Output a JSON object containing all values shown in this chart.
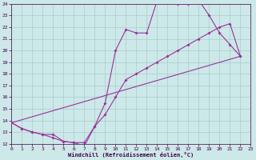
{
  "bg_color": "#cce8e8",
  "grid_color": "#aacccc",
  "line_color": "#993399",
  "xlabel": "Windchill (Refroidissement éolien,°C)",
  "xlim": [
    0,
    23
  ],
  "ylim": [
    12,
    24
  ],
  "xticks": [
    0,
    1,
    2,
    3,
    4,
    5,
    6,
    7,
    8,
    9,
    10,
    11,
    12,
    13,
    14,
    15,
    16,
    17,
    18,
    19,
    20,
    21,
    22,
    23
  ],
  "yticks": [
    12,
    13,
    14,
    15,
    16,
    17,
    18,
    19,
    20,
    21,
    22,
    23,
    24
  ],
  "curve1_x": [
    0,
    1,
    2,
    3,
    4,
    5,
    6,
    7,
    8,
    9,
    10,
    11,
    12,
    13,
    14,
    15,
    16,
    17,
    18,
    19,
    20,
    21,
    22
  ],
  "curve1_y": [
    13.8,
    13.3,
    13.0,
    12.8,
    12.8,
    12.2,
    12.1,
    11.8,
    13.5,
    15.5,
    20.0,
    21.8,
    21.5,
    21.5,
    24.3,
    24.5,
    24.0,
    24.0,
    24.3,
    23.0,
    21.5,
    20.5,
    19.5
  ],
  "curve2_x": [
    0,
    1,
    2,
    3,
    4,
    5,
    6,
    7,
    8,
    9,
    10,
    11,
    12,
    13,
    14,
    15,
    16,
    17,
    18,
    19,
    20,
    21,
    22
  ],
  "curve2_y": [
    13.8,
    13.3,
    13.0,
    12.8,
    12.5,
    12.2,
    12.1,
    12.1,
    13.5,
    14.5,
    16.0,
    17.5,
    18.0,
    18.5,
    19.0,
    19.5,
    20.0,
    20.5,
    21.0,
    21.5,
    22.0,
    22.3,
    19.5
  ],
  "line3_x": [
    0,
    22
  ],
  "line3_y": [
    13.8,
    19.5
  ]
}
